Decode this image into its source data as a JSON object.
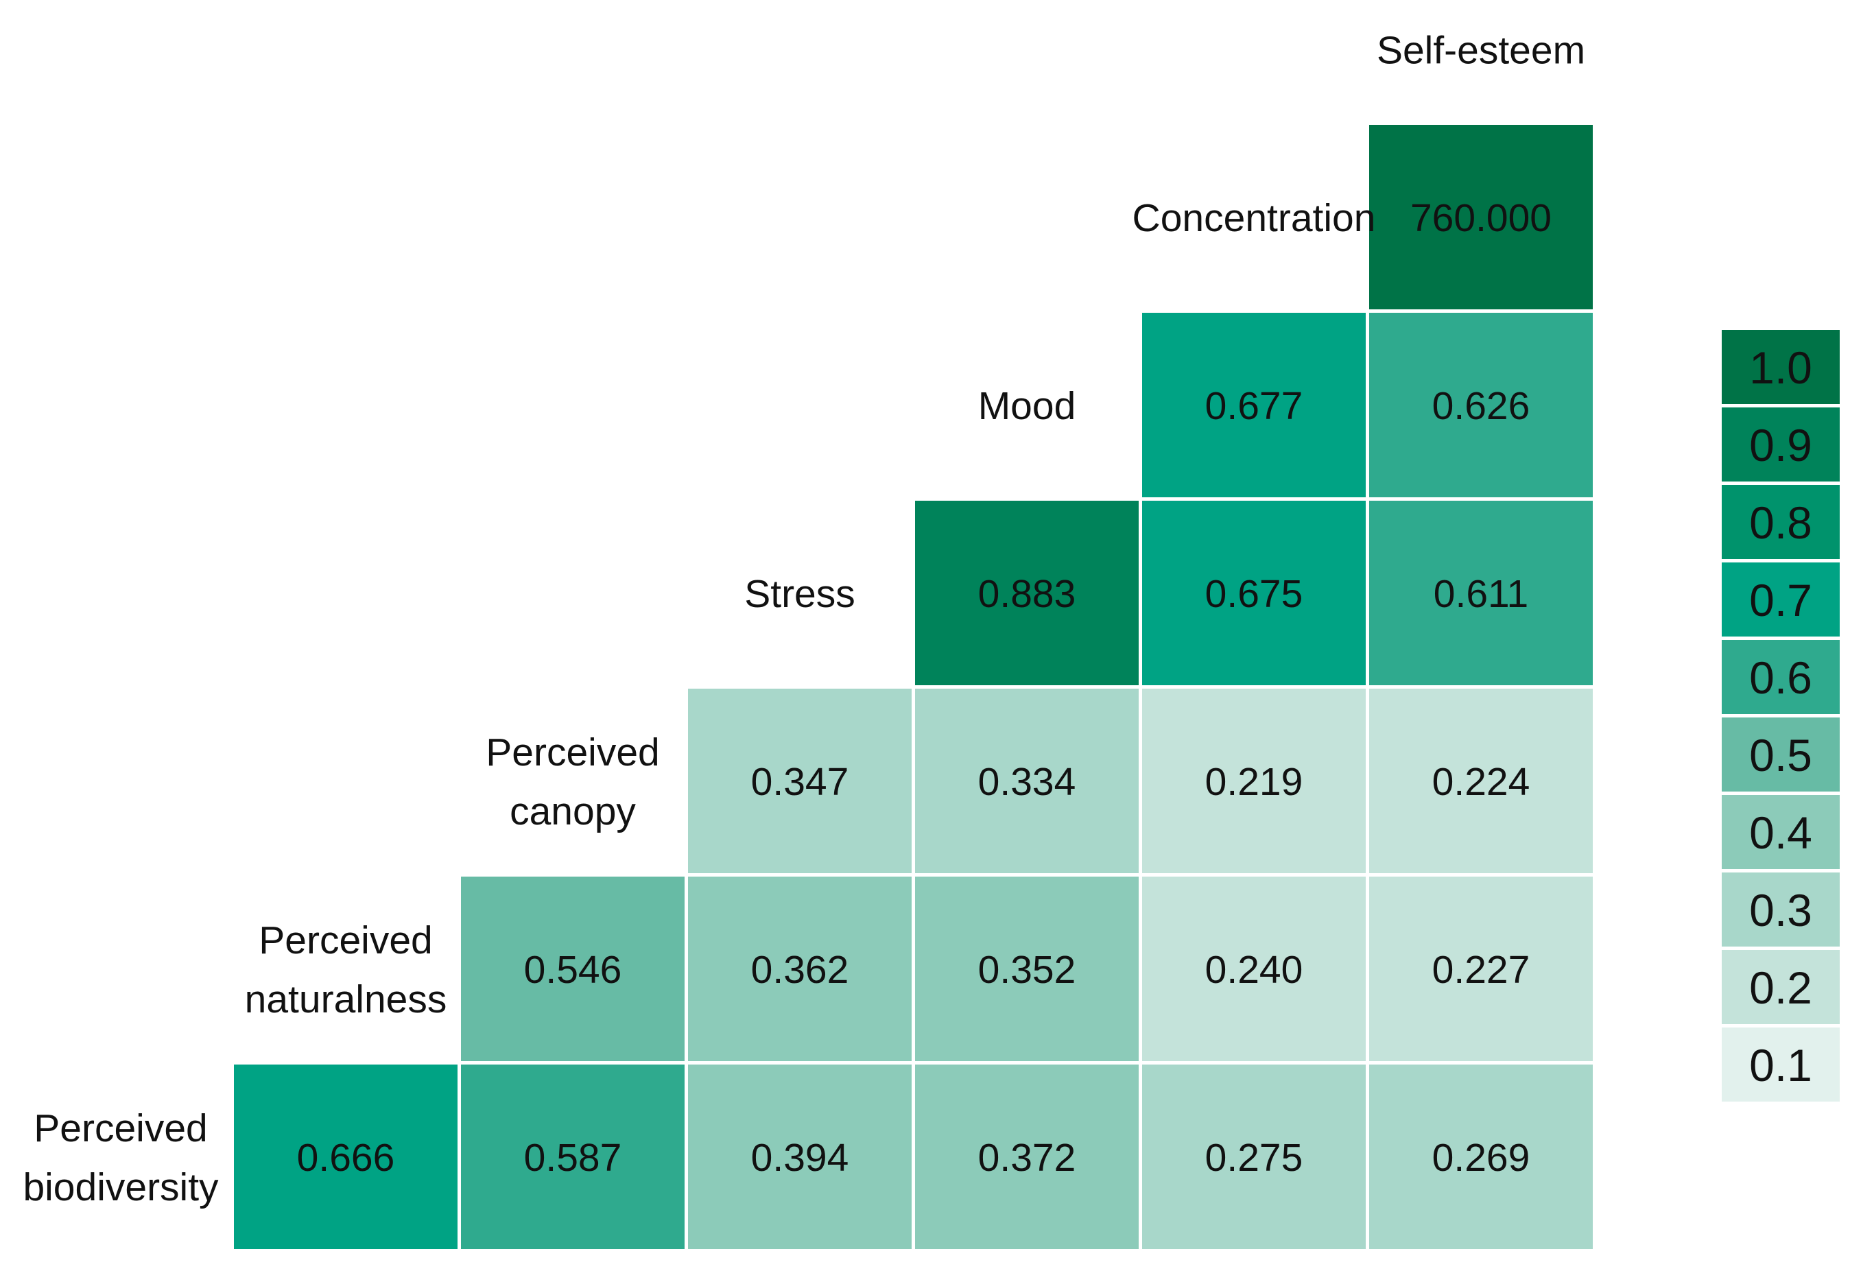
{
  "chart_data": {
    "type": "heatmap",
    "title": "",
    "variables": [
      "Perceived biodiversity",
      "Perceived naturalness",
      "Perceived canopy",
      "Stress",
      "Mood",
      "Concentration",
      "Self-esteem"
    ],
    "row_labels": [
      [
        "Perceived",
        "biodiversity"
      ],
      [
        "Perceived",
        "naturalness"
      ],
      [
        "Perceived",
        "canopy"
      ],
      [
        "Stress"
      ],
      [
        "Mood"
      ],
      [
        "Concentration"
      ],
      [
        "Self-esteem"
      ]
    ],
    "columns": [
      "Perceived naturalness",
      "Perceived canopy",
      "Stress",
      "Mood",
      "Concentration",
      "Self-esteem"
    ],
    "rows": [
      {
        "row": "Perceived biodiversity",
        "values": [
          "0.666",
          "0.587",
          "0.394",
          "0.372",
          "0.275",
          "0.269"
        ]
      },
      {
        "row": "Perceived naturalness",
        "values": [
          "0.546",
          "0.362",
          "0.352",
          "0.240",
          "0.227"
        ]
      },
      {
        "row": "Perceived canopy",
        "values": [
          "0.347",
          "0.334",
          "0.219",
          "0.224"
        ]
      },
      {
        "row": "Stress",
        "values": [
          "0.883",
          "0.675",
          "0.611"
        ]
      },
      {
        "row": "Mood",
        "values": [
          "0.677",
          "0.626"
        ]
      },
      {
        "row": "Concentration",
        "values": [
          "760.000"
        ]
      }
    ],
    "legend": {
      "values": [
        "1.0",
        "0.9",
        "0.8",
        "0.7",
        "0.6",
        "0.5",
        "0.4",
        "0.3",
        "0.2",
        "0.1"
      ],
      "colors": [
        "#007347",
        "#00835a",
        "#00936c",
        "#00a384",
        "#2faa8e",
        "#67bba5",
        "#8ccbb9",
        "#a8d7ca",
        "#c4e3da",
        "#e2f1ed"
      ],
      "placement": "right"
    },
    "colorscale": {
      "min": 0.1,
      "max": 1.0,
      "overflow_color": "#007347"
    }
  }
}
